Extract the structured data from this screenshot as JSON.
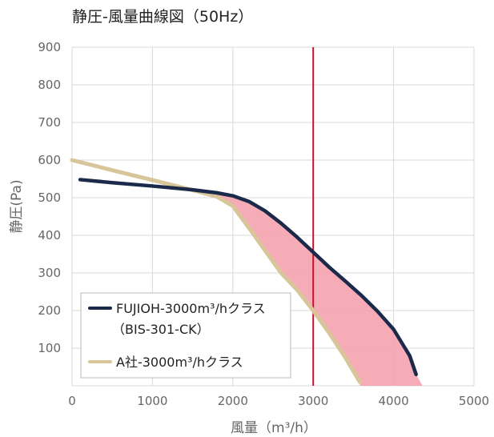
{
  "chart_data": {
    "type": "line",
    "title": "静圧-風量曲線図（50Hz）",
    "xlabel": "風量（m³/h）",
    "ylabel": "静圧(Pa)",
    "xlim": [
      0,
      5000
    ],
    "ylim": [
      0,
      900
    ],
    "xticks": [
      0,
      1000,
      2000,
      3000,
      4000,
      5000
    ],
    "yticks": [
      100,
      200,
      300,
      400,
      500,
      600,
      700,
      800,
      900
    ],
    "grid": true,
    "legend_position": "bottom-left",
    "reference_line_x": 3000,
    "reference_line_color": "#c8102e",
    "fill_between_color": "#f4a3ae",
    "series": [
      {
        "name": "FUJIOH-3000m³/hクラス",
        "name_line2": "（BIS-301-CK）",
        "color": "#1b2a4a",
        "x": [
          100,
          500,
          1000,
          1500,
          1800,
          2000,
          2200,
          2400,
          2600,
          2800,
          3000,
          3200,
          3400,
          3600,
          3800,
          4000,
          4200,
          4280
        ],
        "y": [
          548,
          540,
          531,
          521,
          513,
          505,
          490,
          465,
          432,
          395,
          355,
          315,
          278,
          240,
          198,
          150,
          80,
          30
        ]
      },
      {
        "name": "A社-3000m³/hクラス",
        "color": "#d9c59a",
        "x": [
          0,
          500,
          1000,
          1500,
          1800,
          2000,
          2200,
          2400,
          2600,
          2800,
          3000,
          3200,
          3400,
          3580
        ],
        "y": [
          600,
          573,
          547,
          520,
          503,
          478,
          420,
          360,
          300,
          255,
          200,
          140,
          75,
          10
        ]
      }
    ]
  }
}
